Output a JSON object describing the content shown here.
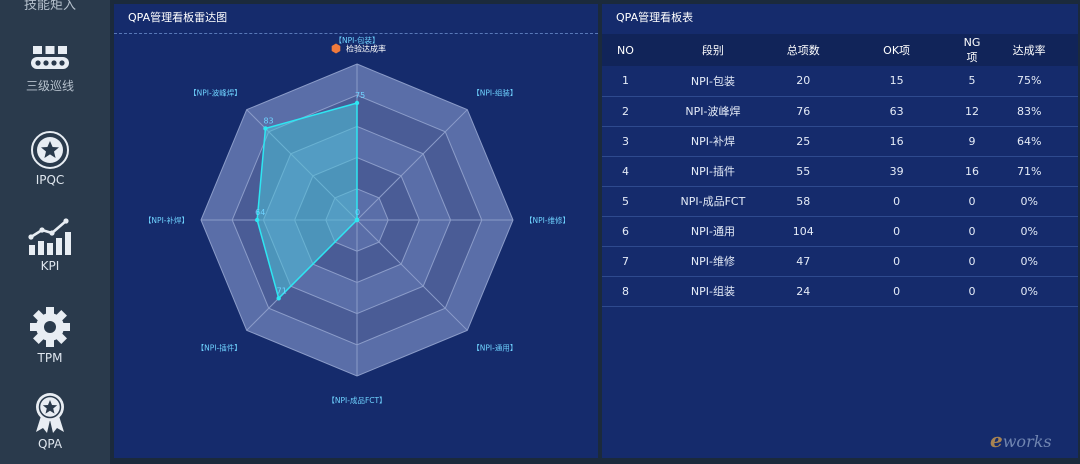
{
  "sidebar": {
    "items": [
      {
        "label": "技能矩入",
        "icon": "partial-item-icon"
      },
      {
        "label": "三级巡线",
        "icon": "conveyor-belt-icon"
      },
      {
        "label": "IPQC",
        "icon": "star-circle-icon"
      },
      {
        "label": "KPI",
        "icon": "bar-trend-icon"
      },
      {
        "label": "TPM",
        "icon": "gear-icon"
      },
      {
        "label": "QPA",
        "icon": "award-star-icon"
      }
    ]
  },
  "radar_panel": {
    "title": "QPA管理看板雷达图",
    "legend_label": "检验达成率",
    "legend_color": "#f07a3c"
  },
  "table_panel": {
    "title": "QPA管理看板表",
    "columns": [
      "NO",
      "段别",
      "总项数",
      "OK项",
      "NG项",
      "达成率"
    ],
    "rows": [
      [
        "1",
        "NPI-包装",
        "20",
        "15",
        "5",
        "75%"
      ],
      [
        "2",
        "NPI-波峰焊",
        "76",
        "63",
        "12",
        "83%"
      ],
      [
        "3",
        "NPI-补焊",
        "25",
        "16",
        "9",
        "64%"
      ],
      [
        "4",
        "NPI-插件",
        "55",
        "39",
        "16",
        "71%"
      ],
      [
        "5",
        "NPI-成品FCT",
        "58",
        "0",
        "0",
        "0%"
      ],
      [
        "6",
        "NPI-通用",
        "104",
        "0",
        "0",
        "0%"
      ],
      [
        "7",
        "NPI-维修",
        "47",
        "0",
        "0",
        "0%"
      ],
      [
        "8",
        "NPI-组装",
        "24",
        "0",
        "0",
        "0%"
      ]
    ]
  },
  "chart_data": {
    "type": "radar",
    "title": "QPA管理看板雷达图",
    "categories": [
      "【NPI-包装】",
      "【NPI-组装】",
      "【NPI-维修】",
      "【NPI-通用】",
      "【NPI-成品FCT】",
      "【NPI-插件】",
      "【NPI-补焊】",
      "【NPI-波峰焊】"
    ],
    "series": [
      {
        "name": "检验达成率",
        "values": [
          75,
          0,
          0,
          0,
          0,
          71,
          64,
          83
        ]
      }
    ],
    "data_labels": [
      "75",
      "0",
      "",
      "",
      "",
      "71",
      "64",
      "83"
    ],
    "rlim": [
      0,
      100
    ],
    "rings": 5,
    "legend": "top-center",
    "colors": {
      "area": "#4fc3d9",
      "line": "#2ee6f2",
      "grid_fill": "#5a6ea8",
      "grid_line": "#8b9cc9",
      "label": "#6fd3ff"
    }
  },
  "logo_text": {
    "prefix": "e",
    "rest": "works"
  }
}
